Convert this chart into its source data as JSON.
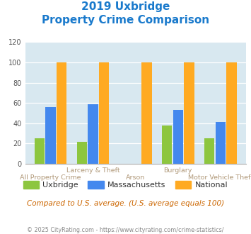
{
  "title_line1": "2019 Uxbridge",
  "title_line2": "Property Crime Comparison",
  "categories": [
    "All Property Crime",
    "Larceny & Theft",
    "Arson",
    "Burglary",
    "Motor Vehicle Theft"
  ],
  "cat_labels_row1": [
    "",
    "Larceny & Theft",
    "",
    "Burglary",
    ""
  ],
  "cat_labels_row2": [
    "All Property Crime",
    "",
    "Arson",
    "",
    "Motor Vehicle Theft"
  ],
  "uxbridge": [
    25,
    22,
    0,
    38,
    25
  ],
  "massachusetts": [
    56,
    59,
    0,
    53,
    41
  ],
  "national": [
    100,
    100,
    100,
    100,
    100
  ],
  "colors": {
    "uxbridge": "#8dc63f",
    "massachusetts": "#4488ee",
    "national": "#ffaa22"
  },
  "ylim": [
    0,
    120
  ],
  "yticks": [
    0,
    20,
    40,
    60,
    80,
    100,
    120
  ],
  "background_color": "#d8e8f0",
  "note": "Compared to U.S. average. (U.S. average equals 100)",
  "footer": "© 2025 CityRating.com - https://www.cityrating.com/crime-statistics/",
  "title_color": "#1a7acc",
  "xlabel_row1_color": "#b09878",
  "xlabel_row2_color": "#b09878",
  "footer_color": "#888888",
  "note_color": "#cc6600"
}
